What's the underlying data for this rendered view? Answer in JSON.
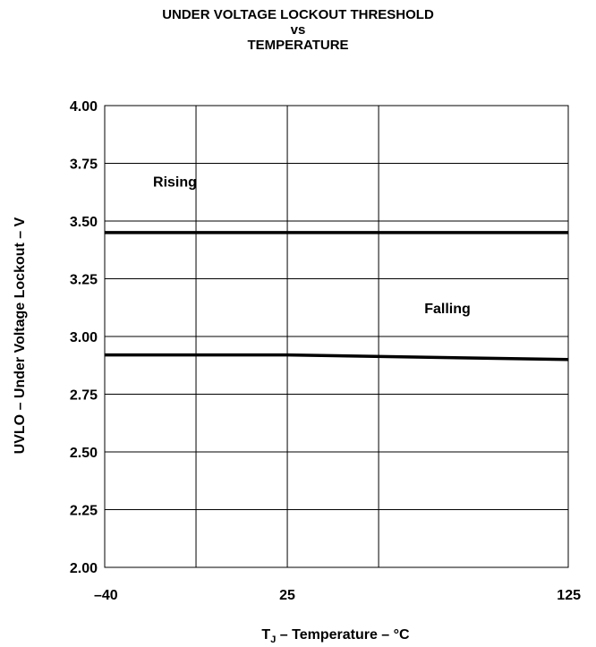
{
  "chart_data": {
    "type": "line",
    "title": [
      "UNDER VOLTAGE LOCKOUT THRESHOLD",
      "vs",
      "TEMPERATURE"
    ],
    "xlabel": {
      "main": "T",
      "sub": "J",
      "rest": " – Temperature – °C"
    },
    "ylabel": "UVLO – Under Voltage Lockout – V",
    "xlim": [
      -40,
      125
    ],
    "ylim": [
      2.0,
      4.0
    ],
    "x_ticks": [
      -40,
      25,
      125
    ],
    "x_tick_labels": [
      "–40",
      "25",
      "125"
    ],
    "x_gridlines": [
      -7.5,
      25,
      57.5
    ],
    "y_ticks": [
      2.0,
      2.25,
      2.5,
      2.75,
      3.0,
      3.25,
      3.5,
      3.75,
      4.0
    ],
    "y_tick_labels": [
      "2.00",
      "2.25",
      "2.50",
      "2.75",
      "3.00",
      "3.25",
      "3.50",
      "3.75",
      "4.00"
    ],
    "grid": true,
    "series": [
      {
        "name": "Rising",
        "x": [
          -40,
          25,
          125
        ],
        "y": [
          3.45,
          3.45,
          3.45
        ]
      },
      {
        "name": "Falling",
        "x": [
          -40,
          25,
          125
        ],
        "y": [
          2.92,
          2.92,
          2.9
        ]
      }
    ],
    "annotations": [
      {
        "text": "Rising",
        "x": -15,
        "y": 3.65
      },
      {
        "text": "Falling",
        "x": 82,
        "y": 3.1
      }
    ]
  }
}
